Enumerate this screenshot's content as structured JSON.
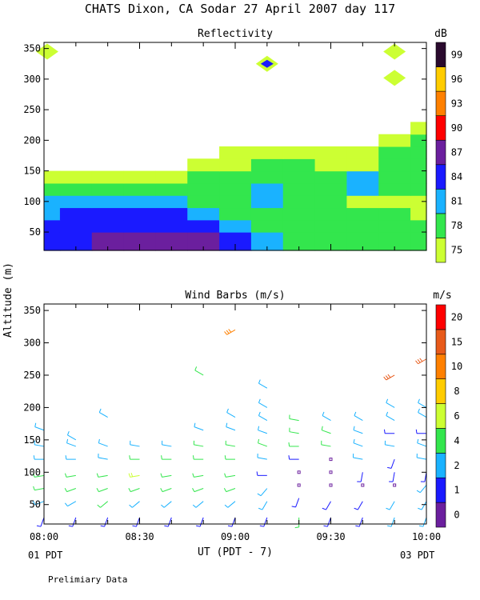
{
  "figure": {
    "title": "CHATS Dixon, CA  Sodar  27 April 2007  day 117",
    "footnote": "Prelimiary Data",
    "xlabel": "UT  (PDT - 7)",
    "ylabel": "Altitude (m)",
    "x_start_note": "01 PDT",
    "x_end_note": "03 PDT"
  },
  "chart_data": [
    {
      "type": "heatmap",
      "title": "Reflectivity",
      "xlabel": "UT  (PDT - 7)",
      "ylabel": "Altitude (m)",
      "x_ticks": [
        "08:00",
        "08:30",
        "09:00",
        "09:30",
        "10:00"
      ],
      "x_range_minutes": [
        0,
        120
      ],
      "y_ticks": [
        50,
        100,
        150,
        200,
        250,
        300,
        350
      ],
      "ylim": [
        20,
        360
      ],
      "colorbar": {
        "label": "dB",
        "levels": [
          75,
          78,
          81,
          84,
          87,
          90,
          93,
          96,
          99
        ],
        "colors": [
          "#ccff33",
          "#33e64d",
          "#1ab2ff",
          "#1a1aff",
          "#6b1f9e",
          "#ff0000",
          "#ff8000",
          "#ffcc00",
          "#2a0a2e"
        ]
      },
      "times_min": [
        0,
        10,
        20,
        30,
        40,
        50,
        60,
        70,
        80,
        90,
        100,
        110,
        120
      ],
      "heights_m": [
        40,
        60,
        80,
        100,
        120,
        140,
        160,
        180,
        200,
        220
      ],
      "values_db": [
        [
          84,
          84,
          87,
          87,
          88,
          87,
          84,
          81,
          78,
          78,
          78,
          78,
          78
        ],
        [
          84,
          84,
          84,
          84,
          84,
          84,
          81,
          78,
          78,
          78,
          78,
          78,
          78
        ],
        [
          81,
          84,
          84,
          84,
          84,
          81,
          78,
          78,
          78,
          78,
          78,
          78,
          75
        ],
        [
          81,
          81,
          81,
          81,
          81,
          78,
          78,
          81,
          78,
          78,
          75,
          75,
          75
        ],
        [
          78,
          78,
          78,
          78,
          78,
          78,
          78,
          81,
          78,
          78,
          81,
          78,
          78
        ],
        [
          75,
          75,
          75,
          75,
          75,
          78,
          78,
          78,
          78,
          78,
          81,
          78,
          78
        ],
        [
          null,
          null,
          null,
          null,
          null,
          75,
          75,
          78,
          78,
          75,
          75,
          78,
          78
        ],
        [
          null,
          null,
          null,
          null,
          null,
          null,
          75,
          75,
          75,
          75,
          75,
          78,
          78
        ],
        [
          null,
          null,
          null,
          null,
          null,
          null,
          null,
          null,
          null,
          null,
          null,
          75,
          78
        ],
        [
          null,
          null,
          null,
          null,
          null,
          null,
          null,
          null,
          null,
          null,
          null,
          null,
          75
        ]
      ],
      "annotations": [
        {
          "t": 70,
          "h": 325,
          "db": 84
        },
        {
          "t": 1,
          "h": 345,
          "db": 75
        },
        {
          "t": 110,
          "h": 345,
          "db": 75
        },
        {
          "t": 110,
          "h": 302,
          "db": 75
        }
      ]
    },
    {
      "type": "scatter",
      "title": "Wind Barbs (m/s)",
      "xlabel": "UT  (PDT - 7)",
      "ylabel": "Altitude (m)",
      "x_ticks": [
        "08:00",
        "08:30",
        "09:00",
        "09:30",
        "10:00"
      ],
      "x_range_minutes": [
        0,
        120
      ],
      "y_ticks": [
        50,
        100,
        150,
        200,
        250,
        300,
        350
      ],
      "ylim": [
        20,
        360
      ],
      "colorbar": {
        "label": "m/s",
        "levels": [
          0,
          1,
          2,
          4,
          6,
          8,
          10,
          15,
          20
        ],
        "colors": [
          "#6b1f9e",
          "#1a1aff",
          "#1ab2ff",
          "#33e64d",
          "#ccff33",
          "#ffcc00",
          "#ff8000",
          "#e85a1a",
          "#ff0000"
        ]
      },
      "barbs": [
        {
          "t": 0,
          "heights": [
            30,
            55,
            75,
            95,
            120,
            140,
            165
          ],
          "speeds": [
            1,
            3,
            4,
            4,
            3,
            3,
            2
          ],
          "dirs": [
            200,
            250,
            260,
            260,
            270,
            280,
            290
          ]
        },
        {
          "t": 10,
          "heights": [
            30,
            55,
            75,
            95,
            120,
            140,
            150
          ],
          "speeds": [
            1,
            3,
            4,
            4,
            3,
            3,
            2
          ],
          "dirs": [
            200,
            240,
            250,
            260,
            270,
            290,
            300
          ]
        },
        {
          "t": 20,
          "heights": [
            30,
            55,
            75,
            95,
            120,
            140,
            185
          ],
          "speeds": [
            1,
            4,
            4,
            4,
            3,
            3,
            2
          ],
          "dirs": [
            200,
            230,
            250,
            260,
            280,
            290,
            300
          ]
        },
        {
          "t": 30,
          "heights": [
            30,
            55,
            75,
            95,
            120,
            140
          ],
          "speeds": [
            1,
            3,
            4,
            6,
            4,
            3
          ],
          "dirs": [
            200,
            230,
            250,
            260,
            270,
            280
          ]
        },
        {
          "t": 40,
          "heights": [
            30,
            55,
            75,
            95,
            120,
            140
          ],
          "speeds": [
            1,
            3,
            4,
            4,
            4,
            3
          ],
          "dirs": [
            200,
            230,
            250,
            260,
            270,
            280
          ]
        },
        {
          "t": 50,
          "heights": [
            30,
            55,
            75,
            95,
            120,
            140,
            165,
            250
          ],
          "speeds": [
            1,
            3,
            4,
            4,
            4,
            4,
            2,
            5
          ],
          "dirs": [
            200,
            230,
            250,
            260,
            270,
            280,
            290,
            300
          ]
        },
        {
          "t": 60,
          "heights": [
            30,
            55,
            75,
            95,
            120,
            140,
            165,
            185,
            320
          ],
          "speeds": [
            1,
            3,
            4,
            4,
            4,
            4,
            2,
            2,
            14
          ],
          "dirs": [
            200,
            230,
            250,
            260,
            270,
            280,
            290,
            300,
            240
          ]
        },
        {
          "t": 70,
          "heights": [
            30,
            55,
            75,
            95,
            120,
            140,
            160,
            180,
            200,
            230
          ],
          "speeds": [
            1,
            2,
            2,
            1,
            3,
            4,
            3,
            2,
            2,
            2
          ],
          "dirs": [
            200,
            210,
            220,
            270,
            280,
            290,
            290,
            300,
            300,
            300
          ]
        },
        {
          "t": 80,
          "heights": [
            30,
            60,
            80,
            100,
            120,
            140,
            160,
            180
          ],
          "speeds": [
            4,
            1,
            0,
            0,
            1,
            4,
            4,
            4
          ],
          "dirs": [
            180,
            200,
            0,
            0,
            270,
            270,
            280,
            280
          ]
        },
        {
          "t": 90,
          "heights": [
            30,
            55,
            80,
            100,
            120,
            140,
            160,
            180
          ],
          "speeds": [
            1,
            1,
            0,
            0,
            0,
            4,
            4,
            2
          ],
          "dirs": [
            200,
            210,
            0,
            0,
            0,
            280,
            290,
            300
          ]
        },
        {
          "t": 100,
          "heights": [
            30,
            55,
            80,
            100,
            120,
            140,
            160,
            180
          ],
          "speeds": [
            1,
            1,
            0,
            1,
            2,
            2,
            2,
            2
          ],
          "dirs": [
            200,
            210,
            0,
            190,
            280,
            290,
            290,
            300
          ]
        },
        {
          "t": 110,
          "heights": [
            30,
            55,
            80,
            100,
            120,
            140,
            160,
            180,
            200,
            250
          ],
          "speeds": [
            2,
            2,
            0,
            1,
            1,
            2,
            1,
            2,
            2,
            15
          ],
          "dirs": [
            200,
            210,
            0,
            190,
            200,
            280,
            270,
            300,
            300,
            240
          ]
        },
        {
          "t": 120,
          "heights": [
            30,
            55,
            80,
            100,
            120,
            140,
            160,
            185,
            200,
            275
          ],
          "speeds": [
            2,
            2,
            2,
            1,
            2,
            2,
            1,
            2,
            2,
            15
          ],
          "dirs": [
            200,
            210,
            220,
            190,
            280,
            290,
            270,
            300,
            300,
            240
          ]
        }
      ]
    }
  ]
}
